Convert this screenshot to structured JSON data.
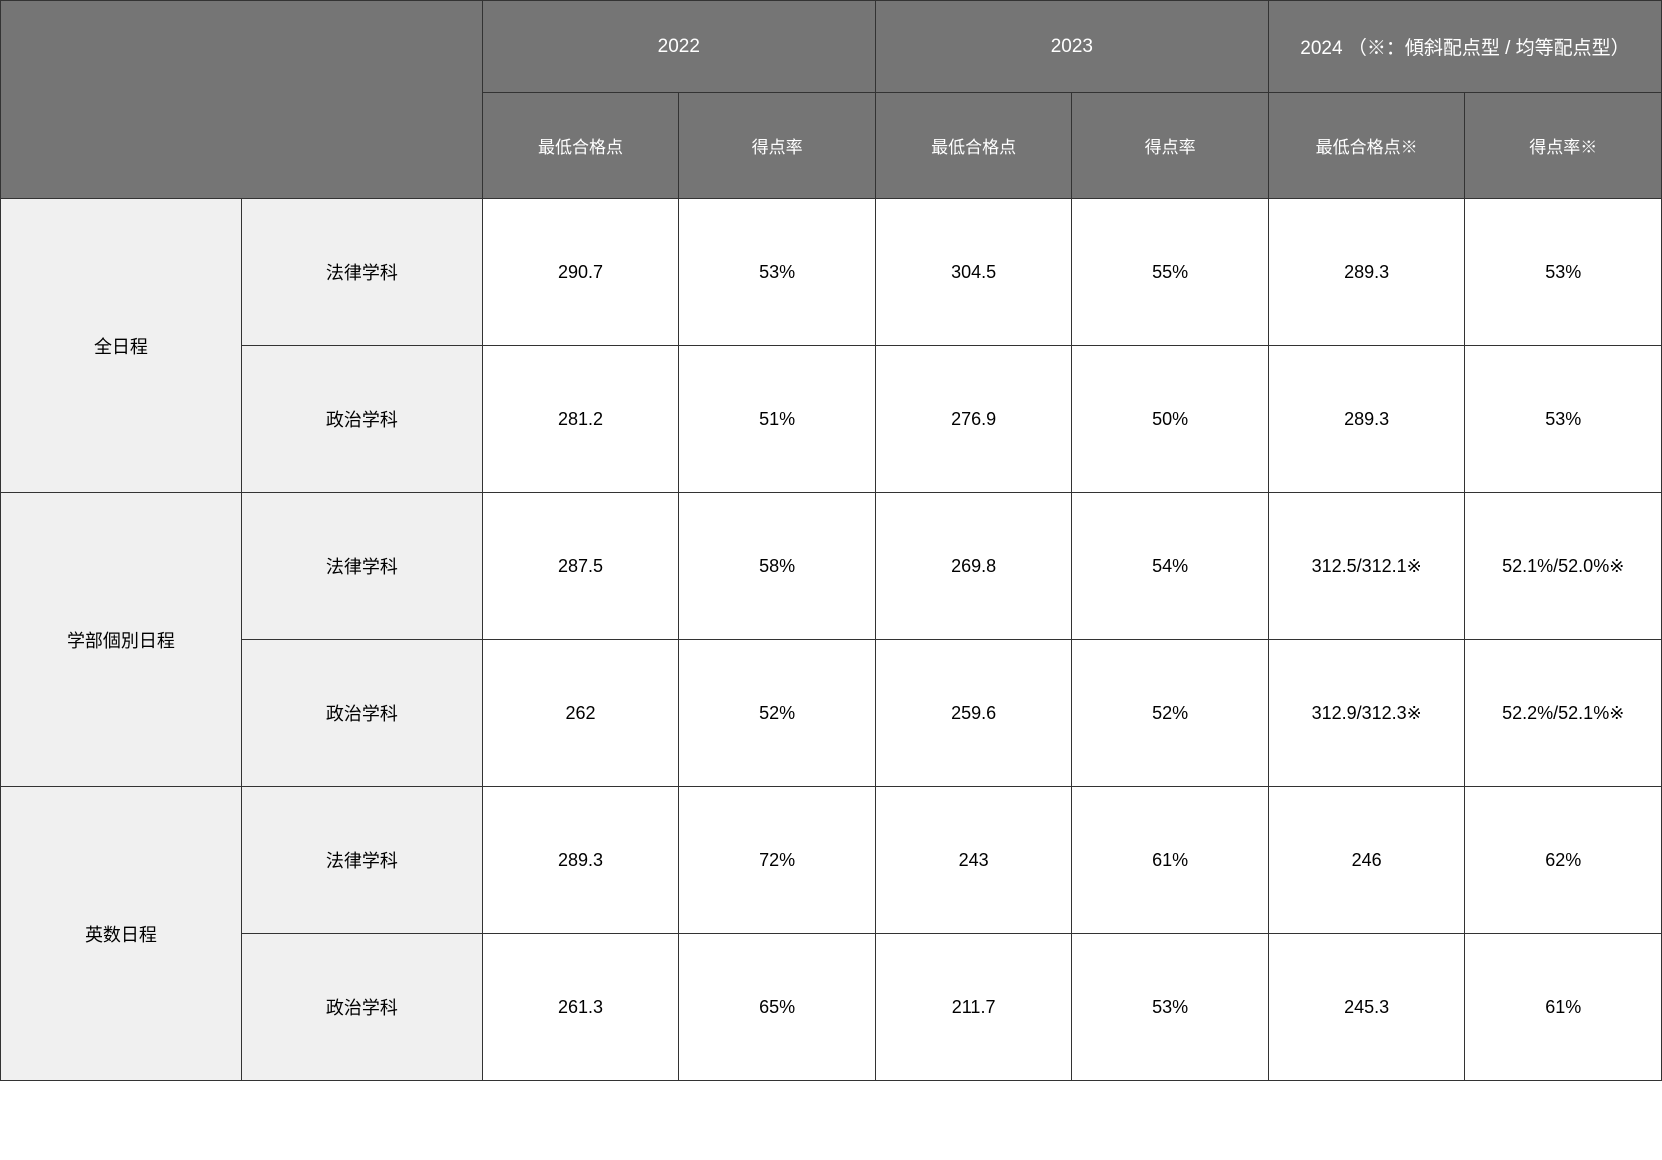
{
  "table": {
    "type": "table",
    "background_color": "#ffffff",
    "header_bg_color": "#757575",
    "header_text_color": "#ffffff",
    "row_header_bg_color": "#f0f0f0",
    "border_color": "#333333",
    "font_size_header": 19,
    "font_size_subheader": 17,
    "font_size_data": 18,
    "years": {
      "y2022": {
        "label": "2022",
        "sub1": "最低合格点",
        "sub2": "得点率"
      },
      "y2023": {
        "label": "2023",
        "sub1": "最低合格点",
        "sub2": "得点率"
      },
      "y2024": {
        "label": "2024",
        "note": "（※：傾斜配点型 / 均等配点型）",
        "sub1": "最低合格点※",
        "sub2": "得点率※"
      }
    },
    "groups": [
      {
        "name": "全日程",
        "rows": [
          {
            "dept": "法律学科",
            "cells": [
              "290.7",
              "53%",
              "304.5",
              "55%",
              "289.3",
              "53%"
            ]
          },
          {
            "dept": "政治学科",
            "cells": [
              "281.2",
              "51%",
              "276.9",
              "50%",
              "289.3",
              "53%"
            ]
          }
        ]
      },
      {
        "name": "学部個別日程",
        "rows": [
          {
            "dept": "法律学科",
            "cells": [
              "287.5",
              "58%",
              "269.8",
              "54%",
              "312.5/312.1※",
              "52.1%/52.0%※"
            ]
          },
          {
            "dept": "政治学科",
            "cells": [
              "262",
              "52%",
              "259.6",
              "52%",
              "312.9/312.3※",
              "52.2%/52.1%※"
            ]
          }
        ]
      },
      {
        "name": "英数日程",
        "rows": [
          {
            "dept": "法律学科",
            "cells": [
              "289.3",
              "72%",
              "243",
              "61%",
              "246",
              "62%"
            ]
          },
          {
            "dept": "政治学科",
            "cells": [
              "261.3",
              "65%",
              "211.7",
              "53%",
              "245.3",
              "61%"
            ]
          }
        ]
      }
    ]
  }
}
